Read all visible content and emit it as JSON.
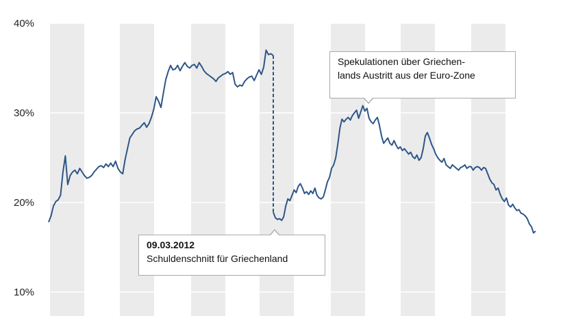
{
  "colors": {
    "line": "#2c5587",
    "band": "#ebebeb",
    "gridline": "#ffffff"
  },
  "chart_data": {
    "type": "line",
    "ylim": [
      10,
      40
    ],
    "y_ticks": [
      "10%",
      "20%",
      "30%",
      "40%"
    ],
    "y_tick_values": [
      10,
      20,
      30,
      40
    ],
    "grid": "horizontal gridlines with alternating vertical bands",
    "legend": "none",
    "x": [
      0,
      1,
      2,
      3,
      4,
      5,
      6,
      7,
      8,
      9,
      10,
      11,
      12,
      13,
      14,
      15,
      16,
      17,
      18,
      19,
      20,
      21,
      22,
      23,
      24,
      25,
      26,
      27,
      28,
      29,
      30,
      31,
      32,
      33,
      34,
      35,
      36,
      37,
      38,
      39,
      40,
      41,
      42,
      43,
      44,
      45,
      46,
      47,
      48,
      49,
      50,
      51,
      52,
      53,
      54,
      55,
      56,
      57,
      58,
      59,
      60,
      61,
      62,
      63,
      64,
      65,
      66,
      67,
      68,
      69,
      70,
      71,
      72,
      73,
      74,
      75,
      76,
      77,
      78,
      79,
      80,
      81,
      82,
      83,
      84,
      85,
      86,
      87,
      88,
      89,
      90,
      91,
      92,
      93,
      94,
      95,
      96,
      97,
      98,
      99,
      100,
      101,
      102,
      103,
      104,
      105,
      106,
      107,
      108,
      109,
      110,
      111,
      112,
      113,
      114,
      115,
      116,
      117,
      118,
      119,
      120,
      121,
      122,
      123,
      124,
      125,
      126,
      127,
      128,
      129,
      130,
      131,
      132,
      133,
      134,
      135,
      136,
      137,
      138,
      139,
      140,
      141,
      142,
      143,
      144,
      145,
      146,
      147,
      148,
      149,
      150,
      151,
      152,
      153,
      154,
      155,
      156,
      157,
      158,
      159,
      160,
      161,
      162,
      163,
      164,
      165,
      166,
      167,
      168,
      169,
      170,
      171,
      172,
      173,
      174,
      175,
      176,
      177,
      178,
      179,
      180,
      181,
      182,
      183,
      184,
      185,
      186,
      187,
      188,
      189,
      190,
      191,
      192,
      193,
      194,
      195,
      196,
      197,
      198,
      199,
      200,
      201,
      202,
      203,
      204,
      205,
      206,
      207,
      208,
      209,
      210,
      211,
      212,
      213,
      214,
      215,
      216,
      217,
      218,
      219,
      220,
      221,
      222,
      223,
      224,
      225,
      226,
      227,
      228,
      229,
      230,
      231,
      232,
      233,
      234,
      235,
      236,
      237,
      238,
      239,
      240,
      241,
      242,
      243,
      244,
      245,
      246,
      247,
      248,
      249,
      250,
      251,
      252,
      253,
      254,
      255,
      256,
      257,
      258,
      259,
      260,
      261,
      262,
      263,
      264,
      265,
      266,
      267,
      268,
      269,
      270,
      271,
      272,
      273,
      274,
      275,
      276,
      277,
      278,
      279,
      280,
      281,
      282,
      283,
      284,
      285,
      286,
      287,
      288,
      289,
      290,
      291,
      292,
      293,
      294,
      295,
      296,
      297,
      298,
      299,
      300,
      301,
      302,
      303,
      304,
      305,
      306,
      307,
      308,
      309,
      310,
      311,
      312,
      313,
      314,
      315,
      316,
      317,
      318,
      319,
      320,
      321,
      322,
      323,
      324,
      325,
      326,
      327,
      328,
      329,
      330,
      331,
      332,
      333,
      334,
      335,
      336,
      337,
      338,
      339,
      340,
      341,
      342,
      343,
      344,
      345,
      346,
      347,
      348,
      349,
      350,
      351,
      352,
      353,
      354,
      355,
      356,
      357
    ],
    "series": [
      {
        "values_before": [
          17.8,
          18.5,
          19.6,
          20.1,
          20.3,
          20.8,
          23.4,
          25.2,
          22.0,
          23.0,
          23.4,
          23.6,
          23.2,
          23.8,
          23.4,
          23.0,
          22.7,
          22.8,
          23.0,
          23.4,
          23.7,
          24.0,
          24.1,
          23.9,
          24.3,
          24.0,
          24.4,
          24.0,
          24.6,
          23.8,
          23.4,
          23.2,
          24.8,
          26.0,
          27.2,
          27.6,
          28.0,
          28.2,
          28.3,
          28.6,
          28.9,
          28.4,
          28.8,
          29.5,
          30.4,
          31.8,
          31.3,
          30.6,
          32.2,
          33.7,
          34.6,
          35.3,
          34.8,
          34.9,
          35.3,
          34.7,
          35.2,
          35.6,
          35.2,
          35.0,
          35.3,
          35.4,
          35.0,
          35.6,
          35.2,
          34.7,
          34.4,
          34.2,
          34.0,
          33.8,
          33.5,
          33.9,
          34.1,
          34.3,
          34.4,
          34.6,
          34.3,
          34.5,
          33.2,
          32.9,
          33.1,
          33.0,
          33.5,
          33.8,
          34.0,
          34.1,
          33.6,
          34.2,
          34.8,
          34.3,
          35.1,
          37.0,
          36.5,
          36.6,
          36.4
        ],
        "values_after": [
          18.9,
          18.3,
          18.1,
          18.2,
          18.0,
          18.4,
          19.6,
          20.4,
          20.2,
          20.8,
          21.4,
          21.1,
          21.8,
          22.1,
          21.6,
          21.0,
          21.2,
          20.9,
          21.3,
          21.0,
          21.6,
          20.8,
          20.5,
          20.4,
          20.6,
          21.4,
          22.3,
          22.8,
          23.8,
          24.2,
          25.0,
          26.5,
          28.3,
          29.3,
          29.0,
          29.3,
          29.5,
          29.2,
          29.7,
          30.0,
          30.3,
          29.4,
          30.1,
          30.8,
          30.2,
          30.5,
          29.4,
          29.0,
          28.8,
          29.2,
          29.5,
          28.6,
          27.4,
          26.6,
          26.9,
          27.2,
          26.6,
          26.4,
          26.9,
          26.4,
          26.0,
          26.2,
          25.8,
          26.0,
          25.7,
          25.4,
          25.6,
          25.1,
          24.9,
          25.3,
          24.7,
          25.0,
          26.0,
          27.4,
          27.8,
          27.2,
          26.5,
          26.0,
          25.4,
          25.0,
          24.7,
          24.5,
          24.9,
          24.2,
          24.0,
          23.8,
          24.2,
          24.0,
          23.8,
          23.6,
          23.9,
          24.0,
          24.2,
          23.8,
          24.0,
          24.0,
          23.6,
          23.9,
          24.0,
          23.9,
          23.6,
          23.9,
          23.8,
          23.2,
          22.6,
          22.2,
          22.0,
          21.4,
          21.6,
          20.9,
          20.4,
          20.1,
          20.5,
          19.7,
          19.5,
          19.8,
          19.4,
          19.1,
          19.2,
          18.8,
          18.7,
          18.5,
          18.2,
          17.6,
          17.3,
          16.6,
          16.8
        ]
      }
    ]
  },
  "annotations": {
    "speculation": {
      "line1": "Spekulationen über Griechen-",
      "line2": "lands Austritt aus der Euro-Zone"
    },
    "haircut": {
      "date": "09.03.2012",
      "text": "Schuldenschnitt für Griechenland"
    }
  }
}
